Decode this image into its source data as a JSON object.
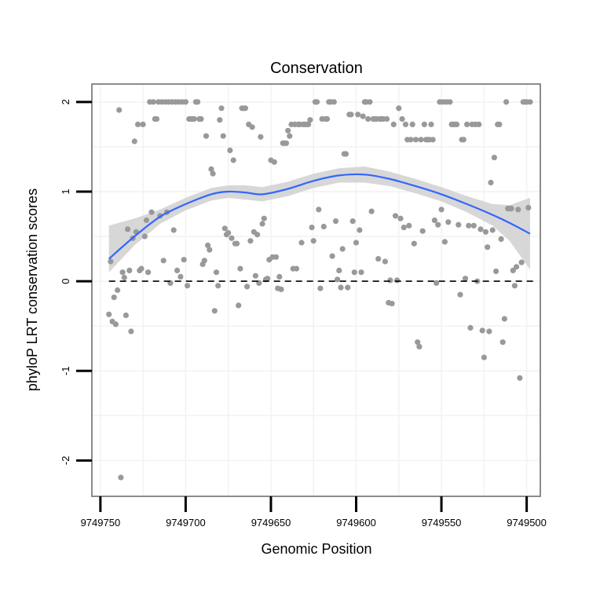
{
  "chart_data": {
    "type": "scatter",
    "title": "Conservation",
    "xlabel": "Genomic Position",
    "ylabel": "phyloP LRT conservation scores",
    "xlim": [
      9749755,
      9749492
    ],
    "ylim": [
      -2.4,
      2.2
    ],
    "x_reversed": true,
    "x_ticks": [
      9749750,
      9749700,
      9749650,
      9749600,
      9749550,
      9749500
    ],
    "x_tick_labels": [
      "9749750",
      "9749700",
      "9749650",
      "9749600",
      "9749550",
      "9749500"
    ],
    "y_ticks": [
      -2,
      -1,
      0,
      1,
      2
    ],
    "y_tick_labels": [
      "-2",
      "-1",
      "0",
      "1",
      "2"
    ],
    "reference_line": {
      "y": 0,
      "style": "dashed",
      "color": "#000000"
    },
    "colors": {
      "points": "#999999",
      "smooth": "#3366ff",
      "band": "#d3d3d3",
      "panel_border": "#808080",
      "grid": "#f2f2f2"
    },
    "grid": true,
    "legend": "none",
    "points": [
      [
        9749745,
        -0.37
      ],
      [
        9749744,
        0.22
      ],
      [
        9749743,
        -0.45
      ],
      [
        9749742,
        -0.18
      ],
      [
        9749741,
        -0.48
      ],
      [
        9749740,
        -0.1
      ],
      [
        9749739,
        1.91
      ],
      [
        9749738,
        -2.19
      ],
      [
        9749737,
        0.1
      ],
      [
        9749736,
        0.04
      ],
      [
        9749735,
        -0.38
      ],
      [
        9749734,
        0.58
      ],
      [
        9749733,
        0.12
      ],
      [
        9749732,
        -0.56
      ],
      [
        9749731,
        0.48
      ],
      [
        9749730,
        1.56
      ],
      [
        9749729,
        0.55
      ],
      [
        9749728,
        1.75
      ],
      [
        9749727,
        0.12
      ],
      [
        9749726,
        0.14
      ],
      [
        9749725,
        1.75
      ],
      [
        9749724,
        0.5
      ],
      [
        9749723,
        0.68
      ],
      [
        9749722,
        0.1
      ],
      [
        9749721,
        2.0
      ],
      [
        9749720,
        0.77
      ],
      [
        9749719,
        2.0
      ],
      [
        9749718,
        1.81
      ],
      [
        9749717,
        1.81
      ],
      [
        9749716,
        2.0
      ],
      [
        9749715,
        0.73
      ],
      [
        9749714,
        2.0
      ],
      [
        9749713,
        0.23
      ],
      [
        9749712,
        2.0
      ],
      [
        9749711,
        0.77
      ],
      [
        9749710,
        2.0
      ],
      [
        9749709,
        -0.02
      ],
      [
        9749708,
        2.0
      ],
      [
        9749707,
        0.57
      ],
      [
        9749706,
        2.0
      ],
      [
        9749705,
        0.12
      ],
      [
        9749704,
        2.0
      ],
      [
        9749703,
        0.05
      ],
      [
        9749702,
        2.0
      ],
      [
        9749701,
        0.24
      ],
      [
        9749700,
        2.0
      ],
      [
        9749699,
        -0.05
      ],
      [
        9749698,
        1.81
      ],
      [
        9749697,
        1.81
      ],
      [
        9749696,
        1.81
      ],
      [
        9749695,
        1.81
      ],
      [
        9749694,
        2.0
      ],
      [
        9749693,
        2.0
      ],
      [
        9749692,
        1.81
      ],
      [
        9749691,
        1.81
      ],
      [
        9749690,
        0.19
      ],
      [
        9749689,
        0.23
      ],
      [
        9749688,
        1.62
      ],
      [
        9749687,
        0.4
      ],
      [
        9749686,
        0.35
      ],
      [
        9749685,
        1.25
      ],
      [
        9749684,
        1.2
      ],
      [
        9749683,
        -0.33
      ],
      [
        9749682,
        0.1
      ],
      [
        9749681,
        -0.05
      ],
      [
        9749680,
        1.8
      ],
      [
        9749679,
        1.93
      ],
      [
        9749678,
        1.62
      ],
      [
        9749677,
        0.59
      ],
      [
        9749676,
        0.52
      ],
      [
        9749675,
        0.54
      ],
      [
        9749674,
        1.46
      ],
      [
        9749673,
        0.48
      ],
      [
        9749672,
        1.35
      ],
      [
        9749671,
        0.42
      ],
      [
        9749670,
        0.42
      ],
      [
        9749669,
        -0.27
      ],
      [
        9749668,
        0.14
      ],
      [
        9749667,
        1.93
      ],
      [
        9749666,
        1.93
      ],
      [
        9749665,
        1.93
      ],
      [
        9749664,
        -0.06
      ],
      [
        9749663,
        1.75
      ],
      [
        9749662,
        0.45
      ],
      [
        9749661,
        1.72
      ],
      [
        9749660,
        0.55
      ],
      [
        9749659,
        0.06
      ],
      [
        9749658,
        0.52
      ],
      [
        9749657,
        -0.02
      ],
      [
        9749656,
        1.61
      ],
      [
        9749655,
        0.64
      ],
      [
        9749654,
        0.7
      ],
      [
        9749653,
        0.02
      ],
      [
        9749652,
        0.03
      ],
      [
        9749651,
        0.24
      ],
      [
        9749650,
        1.35
      ],
      [
        9749649,
        0.27
      ],
      [
        9749648,
        1.33
      ],
      [
        9749647,
        0.27
      ],
      [
        9749646,
        -0.08
      ],
      [
        9749645,
        0.05
      ],
      [
        9749644,
        -0.09
      ],
      [
        9749643,
        1.54
      ],
      [
        9749642,
        1.54
      ],
      [
        9749641,
        1.54
      ],
      [
        9749640,
        1.68
      ],
      [
        9749639,
        1.62
      ],
      [
        9749638,
        1.75
      ],
      [
        9749637,
        0.14
      ],
      [
        9749636,
        1.75
      ],
      [
        9749635,
        0.14
      ],
      [
        9749634,
        1.75
      ],
      [
        9749633,
        1.75
      ],
      [
        9749632,
        0.43
      ],
      [
        9749631,
        1.75
      ],
      [
        9749630,
        1.75
      ],
      [
        9749629,
        1.75
      ],
      [
        9749628,
        1.75
      ],
      [
        9749627,
        1.8
      ],
      [
        9749626,
        0.6
      ],
      [
        9749625,
        0.45
      ],
      [
        9749624,
        2.0
      ],
      [
        9749623,
        2.0
      ],
      [
        9749622,
        0.8
      ],
      [
        9749621,
        -0.08
      ],
      [
        9749620,
        1.81
      ],
      [
        9749619,
        0.61
      ],
      [
        9749618,
        1.81
      ],
      [
        9749617,
        1.81
      ],
      [
        9749616,
        2.0
      ],
      [
        9749615,
        2.0
      ],
      [
        9749614,
        0.28
      ],
      [
        9749613,
        2.0
      ],
      [
        9749612,
        0.67
      ],
      [
        9749611,
        0.02
      ],
      [
        9749610,
        0.12
      ],
      [
        9749609,
        -0.07
      ],
      [
        9749608,
        0.36
      ],
      [
        9749607,
        1.42
      ],
      [
        9749606,
        1.42
      ],
      [
        9749605,
        -0.07
      ],
      [
        9749604,
        1.86
      ],
      [
        9749603,
        1.86
      ],
      [
        9749602,
        0.67
      ],
      [
        9749601,
        0.1
      ],
      [
        9749600,
        0.43
      ],
      [
        9749599,
        1.86
      ],
      [
        9749598,
        0.57
      ],
      [
        9749597,
        0.1
      ],
      [
        9749596,
        1.84
      ],
      [
        9749595,
        2.0
      ],
      [
        9749594,
        2.0
      ],
      [
        9749593,
        1.81
      ],
      [
        9749592,
        2.0
      ],
      [
        9749591,
        0.78
      ],
      [
        9749590,
        1.81
      ],
      [
        9749589,
        1.81
      ],
      [
        9749588,
        1.81
      ],
      [
        9749587,
        0.25
      ],
      [
        9749586,
        1.81
      ],
      [
        9749585,
        1.81
      ],
      [
        9749584,
        1.81
      ],
      [
        9749583,
        0.22
      ],
      [
        9749582,
        1.81
      ],
      [
        9749581,
        -0.24
      ],
      [
        9749580,
        0.01
      ],
      [
        9749579,
        -0.25
      ],
      [
        9749578,
        1.75
      ],
      [
        9749577,
        0.73
      ],
      [
        9749576,
        0.01
      ],
      [
        9749575,
        1.93
      ],
      [
        9749574,
        0.7
      ],
      [
        9749573,
        1.81
      ],
      [
        9749572,
        0.6
      ],
      [
        9749571,
        1.75
      ],
      [
        9749570,
        1.58
      ],
      [
        9749569,
        0.62
      ],
      [
        9749568,
        1.58
      ],
      [
        9749567,
        1.75
      ],
      [
        9749566,
        0.42
      ],
      [
        9749565,
        1.58
      ],
      [
        9749564,
        -0.68
      ],
      [
        9749563,
        -0.73
      ],
      [
        9749562,
        1.58
      ],
      [
        9749561,
        0.56
      ],
      [
        9749560,
        1.75
      ],
      [
        9749559,
        1.58
      ],
      [
        9749558,
        1.58
      ],
      [
        9749557,
        1.58
      ],
      [
        9749556,
        1.75
      ],
      [
        9749555,
        1.58
      ],
      [
        9749554,
        0.68
      ],
      [
        9749553,
        -0.02
      ],
      [
        9749552,
        0.63
      ],
      [
        9749551,
        2.0
      ],
      [
        9749550,
        0.8
      ],
      [
        9749549,
        2.0
      ],
      [
        9749548,
        0.44
      ],
      [
        9749547,
        2.0
      ],
      [
        9749546,
        0.66
      ],
      [
        9749545,
        2.0
      ],
      [
        9749544,
        1.75
      ],
      [
        9749543,
        1.75
      ],
      [
        9749542,
        1.75
      ],
      [
        9749541,
        1.75
      ],
      [
        9749540,
        0.63
      ],
      [
        9749539,
        -0.15
      ],
      [
        9749538,
        1.58
      ],
      [
        9749537,
        1.58
      ],
      [
        9749536,
        0.03
      ],
      [
        9749535,
        1.75
      ],
      [
        9749534,
        0.62
      ],
      [
        9749533,
        -0.52
      ],
      [
        9749532,
        1.75
      ],
      [
        9749531,
        0.62
      ],
      [
        9749530,
        1.75
      ],
      [
        9749529,
        0.0
      ],
      [
        9749528,
        1.75
      ],
      [
        9749527,
        0.58
      ],
      [
        9749526,
        -0.55
      ],
      [
        9749525,
        -0.85
      ],
      [
        9749524,
        0.55
      ],
      [
        9749523,
        0.38
      ],
      [
        9749522,
        -0.56
      ],
      [
        9749521,
        1.1
      ],
      [
        9749520,
        0.57
      ],
      [
        9749519,
        1.38
      ],
      [
        9749518,
        0.11
      ],
      [
        9749517,
        1.75
      ],
      [
        9749516,
        1.75
      ],
      [
        9749515,
        0.47
      ],
      [
        9749514,
        -0.68
      ],
      [
        9749513,
        -0.42
      ],
      [
        9749512,
        2.0
      ],
      [
        9749511,
        0.81
      ],
      [
        9749510,
        0.81
      ],
      [
        9749509,
        0.81
      ],
      [
        9749508,
        0.12
      ],
      [
        9749507,
        -0.05
      ],
      [
        9749506,
        0.16
      ],
      [
        9749505,
        0.8
      ],
      [
        9749504,
        -1.08
      ],
      [
        9749503,
        0.21
      ],
      [
        9749502,
        2.0
      ],
      [
        9749501,
        2.0
      ],
      [
        9749500,
        2.0
      ],
      [
        9749499,
        0.82
      ],
      [
        9749498,
        2.0
      ]
    ],
    "smooth": {
      "x": [
        9749745,
        9749730,
        9749715,
        9749700,
        9749685,
        9749675,
        9749665,
        9749655,
        9749640,
        9749625,
        9749610,
        9749595,
        9749580,
        9749565,
        9749550,
        9749535,
        9749520,
        9749510,
        9749498
      ],
      "y": [
        0.25,
        0.5,
        0.72,
        0.86,
        0.97,
        1.0,
        0.99,
        0.97,
        1.03,
        1.12,
        1.18,
        1.19,
        1.14,
        1.06,
        0.97,
        0.86,
        0.74,
        0.65,
        0.53
      ],
      "lower": [
        0.1,
        0.4,
        0.64,
        0.79,
        0.9,
        0.93,
        0.91,
        0.89,
        0.95,
        1.04,
        1.1,
        1.1,
        1.06,
        0.98,
        0.89,
        0.77,
        0.62,
        0.45,
        0.13
      ],
      "upper": [
        0.62,
        0.7,
        0.8,
        0.93,
        1.04,
        1.07,
        1.07,
        1.05,
        1.11,
        1.2,
        1.26,
        1.28,
        1.22,
        1.14,
        1.05,
        0.95,
        0.86,
        0.85,
        0.93
      ]
    }
  }
}
